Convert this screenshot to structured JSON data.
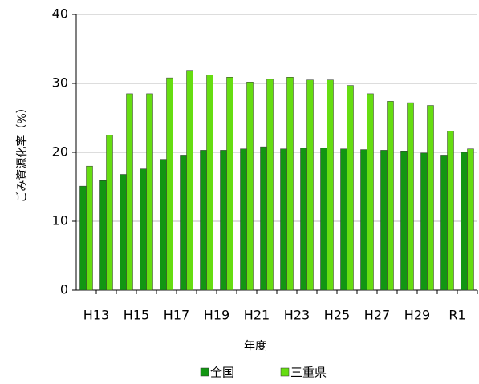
{
  "chart_data": {
    "type": "bar",
    "x_label": "年度",
    "y_label": "ごみ資源化率（%）",
    "categories": [
      "H13",
      null,
      "H15",
      null,
      "H17",
      null,
      "H19",
      null,
      "H21",
      null,
      "H23",
      null,
      "H25",
      null,
      "H27",
      null,
      "H29",
      null,
      "R1",
      null
    ],
    "series": [
      {
        "name": "全国",
        "color": "#129612",
        "values": [
          15.1,
          15.9,
          16.8,
          17.6,
          19.0,
          19.6,
          20.3,
          20.3,
          20.5,
          20.8,
          20.5,
          20.6,
          20.6,
          20.5,
          20.4,
          20.3,
          20.2,
          19.9,
          19.6,
          20.0
        ]
      },
      {
        "name": "三重県",
        "color": "#66dd11",
        "values": [
          18.0,
          22.5,
          28.5,
          28.5,
          30.8,
          31.9,
          31.2,
          30.9,
          30.2,
          30.6,
          30.9,
          30.5,
          30.5,
          29.7,
          28.5,
          27.4,
          27.2,
          26.8,
          23.1,
          20.5
        ]
      }
    ],
    "ylim": [
      0,
      40
    ],
    "yticks": [
      0,
      10,
      20,
      30,
      40
    ],
    "grid": true
  }
}
